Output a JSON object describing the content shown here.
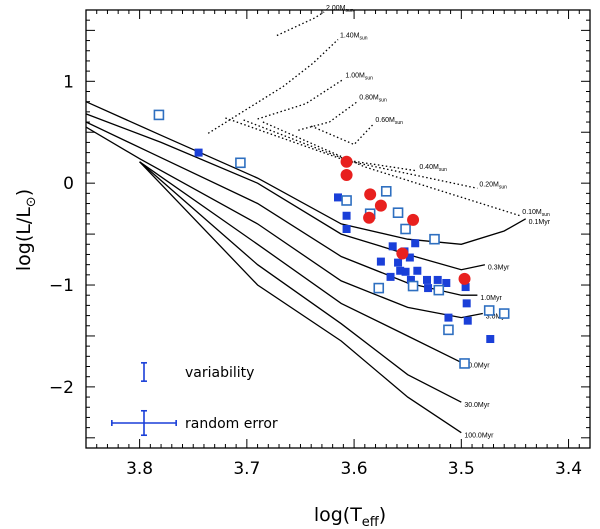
{
  "chart_data": {
    "type": "scatter",
    "title": "",
    "xlabel": "log(T",
    "xlabel_sub": "eff",
    "xlabel_close": ")",
    "ylabel": "log(L/L",
    "ylabel_sun": "⊙",
    "ylabel_close": ")",
    "xlim": [
      3.85,
      3.38
    ],
    "ylim": [
      -2.6,
      1.7
    ],
    "x_ticks": [
      3.8,
      3.7,
      3.6,
      3.5,
      3.4
    ],
    "x_tick_labels": [
      "3.8",
      "3.7",
      "3.6",
      "3.5",
      "3.4"
    ],
    "y_ticks": [
      1,
      0,
      -1,
      -2
    ],
    "y_tick_labels": [
      "1",
      "0",
      "−1",
      "−2"
    ],
    "grid": false,
    "colors": {
      "blue": "#1a3fd8",
      "open_blue": "#2e6fc0",
      "red": "#e8201e",
      "tracks": "#000000"
    },
    "evolutionary_tracks": [
      {
        "label": "2.00M",
        "sub": "sun",
        "points": [
          [
            3.672,
            1.45
          ],
          [
            3.637,
            1.62
          ],
          [
            3.628,
            1.68
          ]
        ]
      },
      {
        "label": "1.40M",
        "sub": "sun",
        "points": [
          [
            3.736,
            0.49
          ],
          [
            3.666,
            0.95
          ],
          [
            3.638,
            1.18
          ],
          [
            3.615,
            1.41
          ]
        ]
      },
      {
        "label": "1.00M",
        "sub": "sun",
        "points": [
          [
            3.69,
            0.63
          ],
          [
            3.645,
            0.78
          ],
          [
            3.61,
            1.02
          ]
        ]
      },
      {
        "label": "0.80M",
        "sub": "sun",
        "points": [
          [
            3.652,
            0.52
          ],
          [
            3.623,
            0.6
          ],
          [
            3.597,
            0.8
          ]
        ]
      },
      {
        "label": "0.60M",
        "sub": "sun",
        "points": [
          [
            3.64,
            0.56
          ],
          [
            3.6,
            0.38
          ],
          [
            3.582,
            0.58
          ]
        ]
      },
      {
        "label": "0.40M",
        "sub": "sun",
        "points": [
          [
            3.72,
            0.64
          ],
          [
            3.61,
            0.23
          ],
          [
            3.541,
            0.12
          ]
        ]
      },
      {
        "label": "0.20M",
        "sub": "sun",
        "points": [
          [
            3.703,
            0.62
          ],
          [
            3.602,
            0.21
          ],
          [
            3.485,
            -0.05
          ]
        ]
      },
      {
        "label": "0.10M",
        "sub": "sun",
        "points": [
          [
            3.685,
            0.6
          ],
          [
            3.59,
            0.16
          ],
          [
            3.445,
            -0.32
          ]
        ]
      }
    ],
    "isochrones": [
      {
        "label": "0.1Myr",
        "points": [
          [
            3.85,
            0.8
          ],
          [
            3.78,
            0.47
          ],
          [
            3.69,
            0.05
          ],
          [
            3.612,
            -0.4
          ],
          [
            3.55,
            -0.55
          ],
          [
            3.5,
            -0.6
          ],
          [
            3.46,
            -0.47
          ],
          [
            3.44,
            -0.35
          ]
        ]
      },
      {
        "label": "0.3Myr",
        "points": [
          [
            3.85,
            0.68
          ],
          [
            3.78,
            0.4
          ],
          [
            3.69,
            0.0
          ],
          [
            3.612,
            -0.5
          ],
          [
            3.55,
            -0.7
          ],
          [
            3.5,
            -0.85
          ],
          [
            3.478,
            -0.8
          ]
        ]
      },
      {
        "label": "1.0Myr",
        "points": [
          [
            3.85,
            0.6
          ],
          [
            3.79,
            0.3
          ],
          [
            3.69,
            -0.2
          ],
          [
            3.612,
            -0.72
          ],
          [
            3.55,
            -0.98
          ],
          [
            3.5,
            -1.1
          ],
          [
            3.485,
            -1.1
          ]
        ]
      },
      {
        "label": "3.0Myr",
        "points": [
          [
            3.85,
            0.55
          ],
          [
            3.8,
            0.24
          ],
          [
            3.69,
            -0.4
          ],
          [
            3.612,
            -0.96
          ],
          [
            3.55,
            -1.22
          ],
          [
            3.5,
            -1.32
          ],
          [
            3.48,
            -1.28
          ]
        ]
      },
      {
        "label": "10.0Myr",
        "points": [
          [
            3.8,
            0.21
          ],
          [
            3.69,
            -0.6
          ],
          [
            3.612,
            -1.18
          ],
          [
            3.55,
            -1.5
          ],
          [
            3.5,
            -1.76
          ]
        ]
      },
      {
        "label": "30.0Myr",
        "points": [
          [
            3.8,
            0.21
          ],
          [
            3.69,
            -0.8
          ],
          [
            3.612,
            -1.38
          ],
          [
            3.55,
            -1.88
          ],
          [
            3.5,
            -2.15
          ]
        ]
      },
      {
        "label": "100.0Myr",
        "points": [
          [
            3.8,
            0.21
          ],
          [
            3.69,
            -1.0
          ],
          [
            3.612,
            -1.55
          ],
          [
            3.55,
            -2.1
          ],
          [
            3.5,
            -2.45
          ]
        ]
      }
    ],
    "series": [
      {
        "marker": "filled-square",
        "color": "#1a3fd8",
        "points": [
          [
            3.745,
            0.3
          ],
          [
            3.615,
            -0.14
          ],
          [
            3.607,
            -0.32
          ],
          [
            3.607,
            -0.45
          ],
          [
            3.564,
            -0.62
          ],
          [
            3.559,
            -0.78
          ],
          [
            3.557,
            -0.86
          ],
          [
            3.553,
            -0.67
          ],
          [
            3.548,
            -0.73
          ],
          [
            3.547,
            -0.95
          ],
          [
            3.543,
            -0.59
          ],
          [
            3.541,
            -0.86
          ],
          [
            3.532,
            -0.95
          ],
          [
            3.531,
            -1.03
          ],
          [
            3.522,
            -0.95
          ],
          [
            3.514,
            -0.98
          ],
          [
            3.512,
            -1.32
          ],
          [
            3.496,
            -1.02
          ],
          [
            3.495,
            -1.18
          ],
          [
            3.494,
            -1.35
          ],
          [
            3.473,
            -1.53
          ],
          [
            3.566,
            -0.92
          ],
          [
            3.575,
            -0.77
          ],
          [
            3.552,
            -0.87
          ]
        ]
      },
      {
        "marker": "open-square",
        "color": "#2e6fc0",
        "points": [
          [
            3.782,
            0.67
          ],
          [
            3.706,
            0.2
          ],
          [
            3.607,
            -0.17
          ],
          [
            3.585,
            -0.3
          ],
          [
            3.57,
            -0.08
          ],
          [
            3.559,
            -0.29
          ],
          [
            3.552,
            -0.45
          ],
          [
            3.525,
            -0.55
          ],
          [
            3.545,
            -1.01
          ],
          [
            3.521,
            -1.05
          ],
          [
            3.577,
            -1.03
          ],
          [
            3.512,
            -1.44
          ],
          [
            3.497,
            -1.77
          ],
          [
            3.474,
            -1.25
          ],
          [
            3.46,
            -1.28
          ]
        ]
      },
      {
        "marker": "filled-circle",
        "color": "#e8201e",
        "points": [
          [
            3.607,
            0.21
          ],
          [
            3.607,
            0.08
          ],
          [
            3.585,
            -0.11
          ],
          [
            3.575,
            -0.22
          ],
          [
            3.586,
            -0.34
          ],
          [
            3.545,
            -0.36
          ],
          [
            3.555,
            -0.69
          ],
          [
            3.497,
            -0.94
          ]
        ]
      }
    ],
    "legend": [
      {
        "label": "variability",
        "error_y": 0.09,
        "error_x": 0
      },
      {
        "label": "random error",
        "error_y": 0.12,
        "error_x": 0.03
      }
    ]
  }
}
